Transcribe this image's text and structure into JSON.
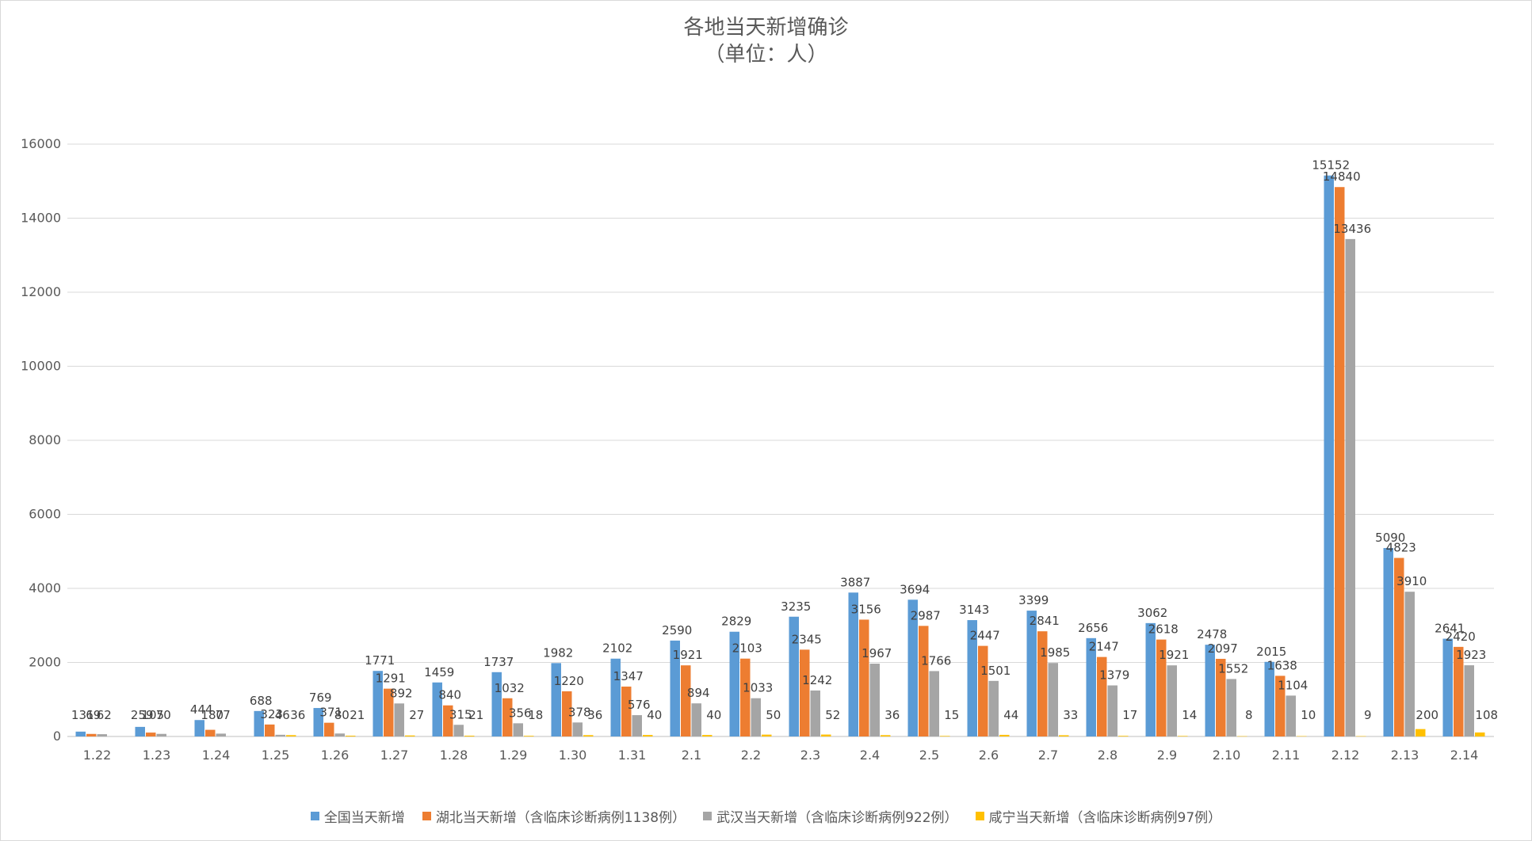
{
  "chart_data": {
    "type": "bar",
    "title": "各地当天新增确诊",
    "subtitle": "（单位：人）",
    "categories": [
      "1.22",
      "1.23",
      "1.24",
      "1.25",
      "1.26",
      "1.27",
      "1.28",
      "1.29",
      "1.30",
      "1.31",
      "2.1",
      "2.2",
      "2.3",
      "2.4",
      "2.5",
      "2.6",
      "2.7",
      "2.8",
      "2.9",
      "2.10",
      "2.11",
      "2.12",
      "2.13",
      "2.14"
    ],
    "ylim": [
      0,
      16000
    ],
    "yticks": [
      0,
      2000,
      4000,
      6000,
      8000,
      10000,
      12000,
      14000,
      16000
    ],
    "grid": true,
    "legend_position": "bottom",
    "series": [
      {
        "name": "全国当天新增",
        "color": "#5B9BD5",
        "values": [
          131,
          259,
          444,
          688,
          769,
          1771,
          1459,
          1737,
          1982,
          2102,
          2590,
          2829,
          3235,
          3887,
          3694,
          3143,
          3399,
          2656,
          3062,
          2478,
          2015,
          15152,
          5090,
          2641
        ]
      },
      {
        "name": "湖北当天新增（含临床诊断病例1138例）",
        "color": "#ED7D31",
        "values": [
          69,
          105,
          180,
          323,
          371,
          1291,
          840,
          1032,
          1220,
          1347,
          1921,
          2103,
          2345,
          3156,
          2987,
          2447,
          2841,
          2147,
          2618,
          2097,
          1638,
          14840,
          4823,
          2420
        ]
      },
      {
        "name": "武汉当天新增（含临床诊断病例922例）",
        "color": "#A5A5A5",
        "values": [
          62,
          70,
          77,
          46,
          80,
          892,
          315,
          356,
          378,
          576,
          894,
          1033,
          1242,
          1967,
          1766,
          1501,
          1985,
          1379,
          1921,
          1552,
          1104,
          13436,
          3910,
          1923
        ]
      },
      {
        "name": "咸宁当天新增（含临床诊断病例97例）",
        "color": "#FFC000",
        "values": [
          null,
          null,
          null,
          36,
          21,
          27,
          21,
          18,
          36,
          40,
          40,
          50,
          52,
          36,
          15,
          44,
          33,
          17,
          14,
          8,
          10,
          9,
          200,
          108
        ]
      }
    ]
  }
}
